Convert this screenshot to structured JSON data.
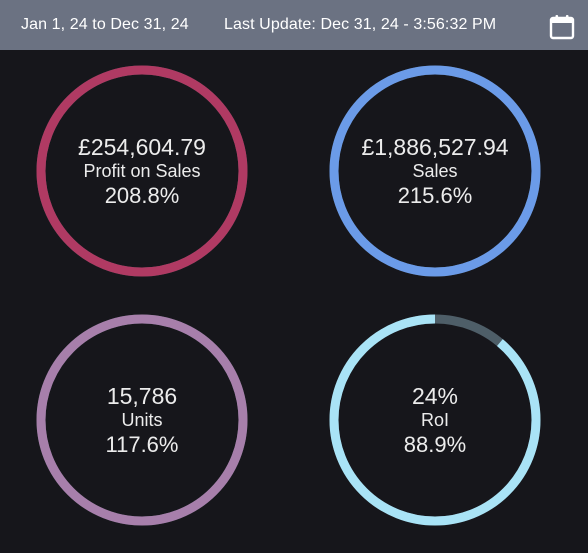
{
  "header": {
    "date_range": "Jan 1, 24 to Dec 31, 24",
    "last_update": "Last Update: Dec 31, 24 - 3:56:32 PM",
    "calendar_icon": "calendar-icon"
  },
  "gauges": [
    {
      "value": "£254,604.79",
      "label": "Profit on Sales",
      "percent": "208.8%",
      "fill": 1.0,
      "color": "#b03a63",
      "track": "#4a5a64"
    },
    {
      "value": "£1,886,527.94",
      "label": "Sales",
      "percent": "215.6%",
      "fill": 1.0,
      "color": "#6b9be8",
      "track": "#4a5a64"
    },
    {
      "value": "15,786",
      "label": "Units",
      "percent": "117.6%",
      "fill": 1.0,
      "color": "#a77fab",
      "track": "#4a5a64"
    },
    {
      "value": "24%",
      "label": "RoI",
      "percent": "88.9%",
      "fill": 0.889,
      "color": "#a9e3f6",
      "track": "#4e5e68"
    }
  ]
}
